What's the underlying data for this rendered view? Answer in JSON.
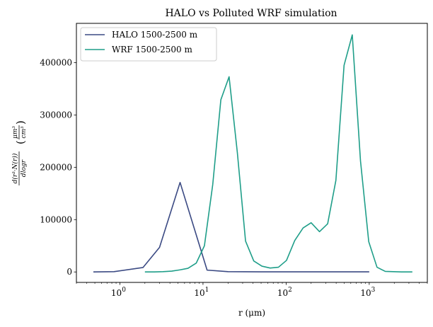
{
  "chart_data": {
    "type": "line",
    "title": "HALO vs Polluted WRF simulation",
    "xlabel": "r (μm)",
    "ylabel_parts": {
      "numerator": "d(r³·N(r))",
      "denominator": "dlogr",
      "unit_numerator": "μm³",
      "unit_denominator": "cm³"
    },
    "xscale": "log",
    "xlim": [
      0.3,
      5000
    ],
    "ylim": [
      -20000,
      475000
    ],
    "x_major_ticks": [
      {
        "value": 1,
        "base": "10",
        "exp": "0"
      },
      {
        "value": 10,
        "base": "10",
        "exp": "1"
      },
      {
        "value": 100,
        "base": "10",
        "exp": "2"
      },
      {
        "value": 1000,
        "base": "10",
        "exp": "3"
      }
    ],
    "y_ticks": [
      {
        "value": 0,
        "label": "0"
      },
      {
        "value": 100000,
        "label": "100000"
      },
      {
        "value": 200000,
        "label": "200000"
      },
      {
        "value": 300000,
        "label": "300000"
      },
      {
        "value": 400000,
        "label": "400000"
      }
    ],
    "legend_position": "top-left",
    "grid": false,
    "series": [
      {
        "name": "HALO 1500-2500 m",
        "color": "#3b4a83",
        "x": [
          0.48,
          0.85,
          1.9,
          3.0,
          5.3,
          11.2,
          20,
          50,
          100,
          200,
          500,
          1000
        ],
        "y": [
          0,
          500,
          8500,
          47000,
          171000,
          3500,
          500,
          200,
          200,
          200,
          200,
          200
        ]
      },
      {
        "name": "WRF 1500-2500 m",
        "color": "#1f9e89",
        "x": [
          2,
          2.6,
          3.3,
          4.2,
          5.3,
          6.6,
          8.3,
          10.4,
          13.1,
          16.4,
          20.6,
          25.9,
          32.5,
          40.8,
          51.2,
          64.3,
          80.8,
          101,
          127,
          160,
          200,
          252,
          316,
          397,
          498,
          625,
          785,
          986,
          1240,
          1560,
          1950,
          2450,
          3300
        ],
        "y": [
          0,
          0,
          500,
          1500,
          4000,
          7000,
          17000,
          50000,
          167000,
          329000,
          373000,
          228000,
          59000,
          21000,
          11000,
          7500,
          9000,
          22000,
          60000,
          84000,
          94000,
          77000,
          92000,
          175000,
          395000,
          453000,
          212000,
          58000,
          9000,
          1000,
          500,
          0,
          0
        ]
      }
    ]
  }
}
